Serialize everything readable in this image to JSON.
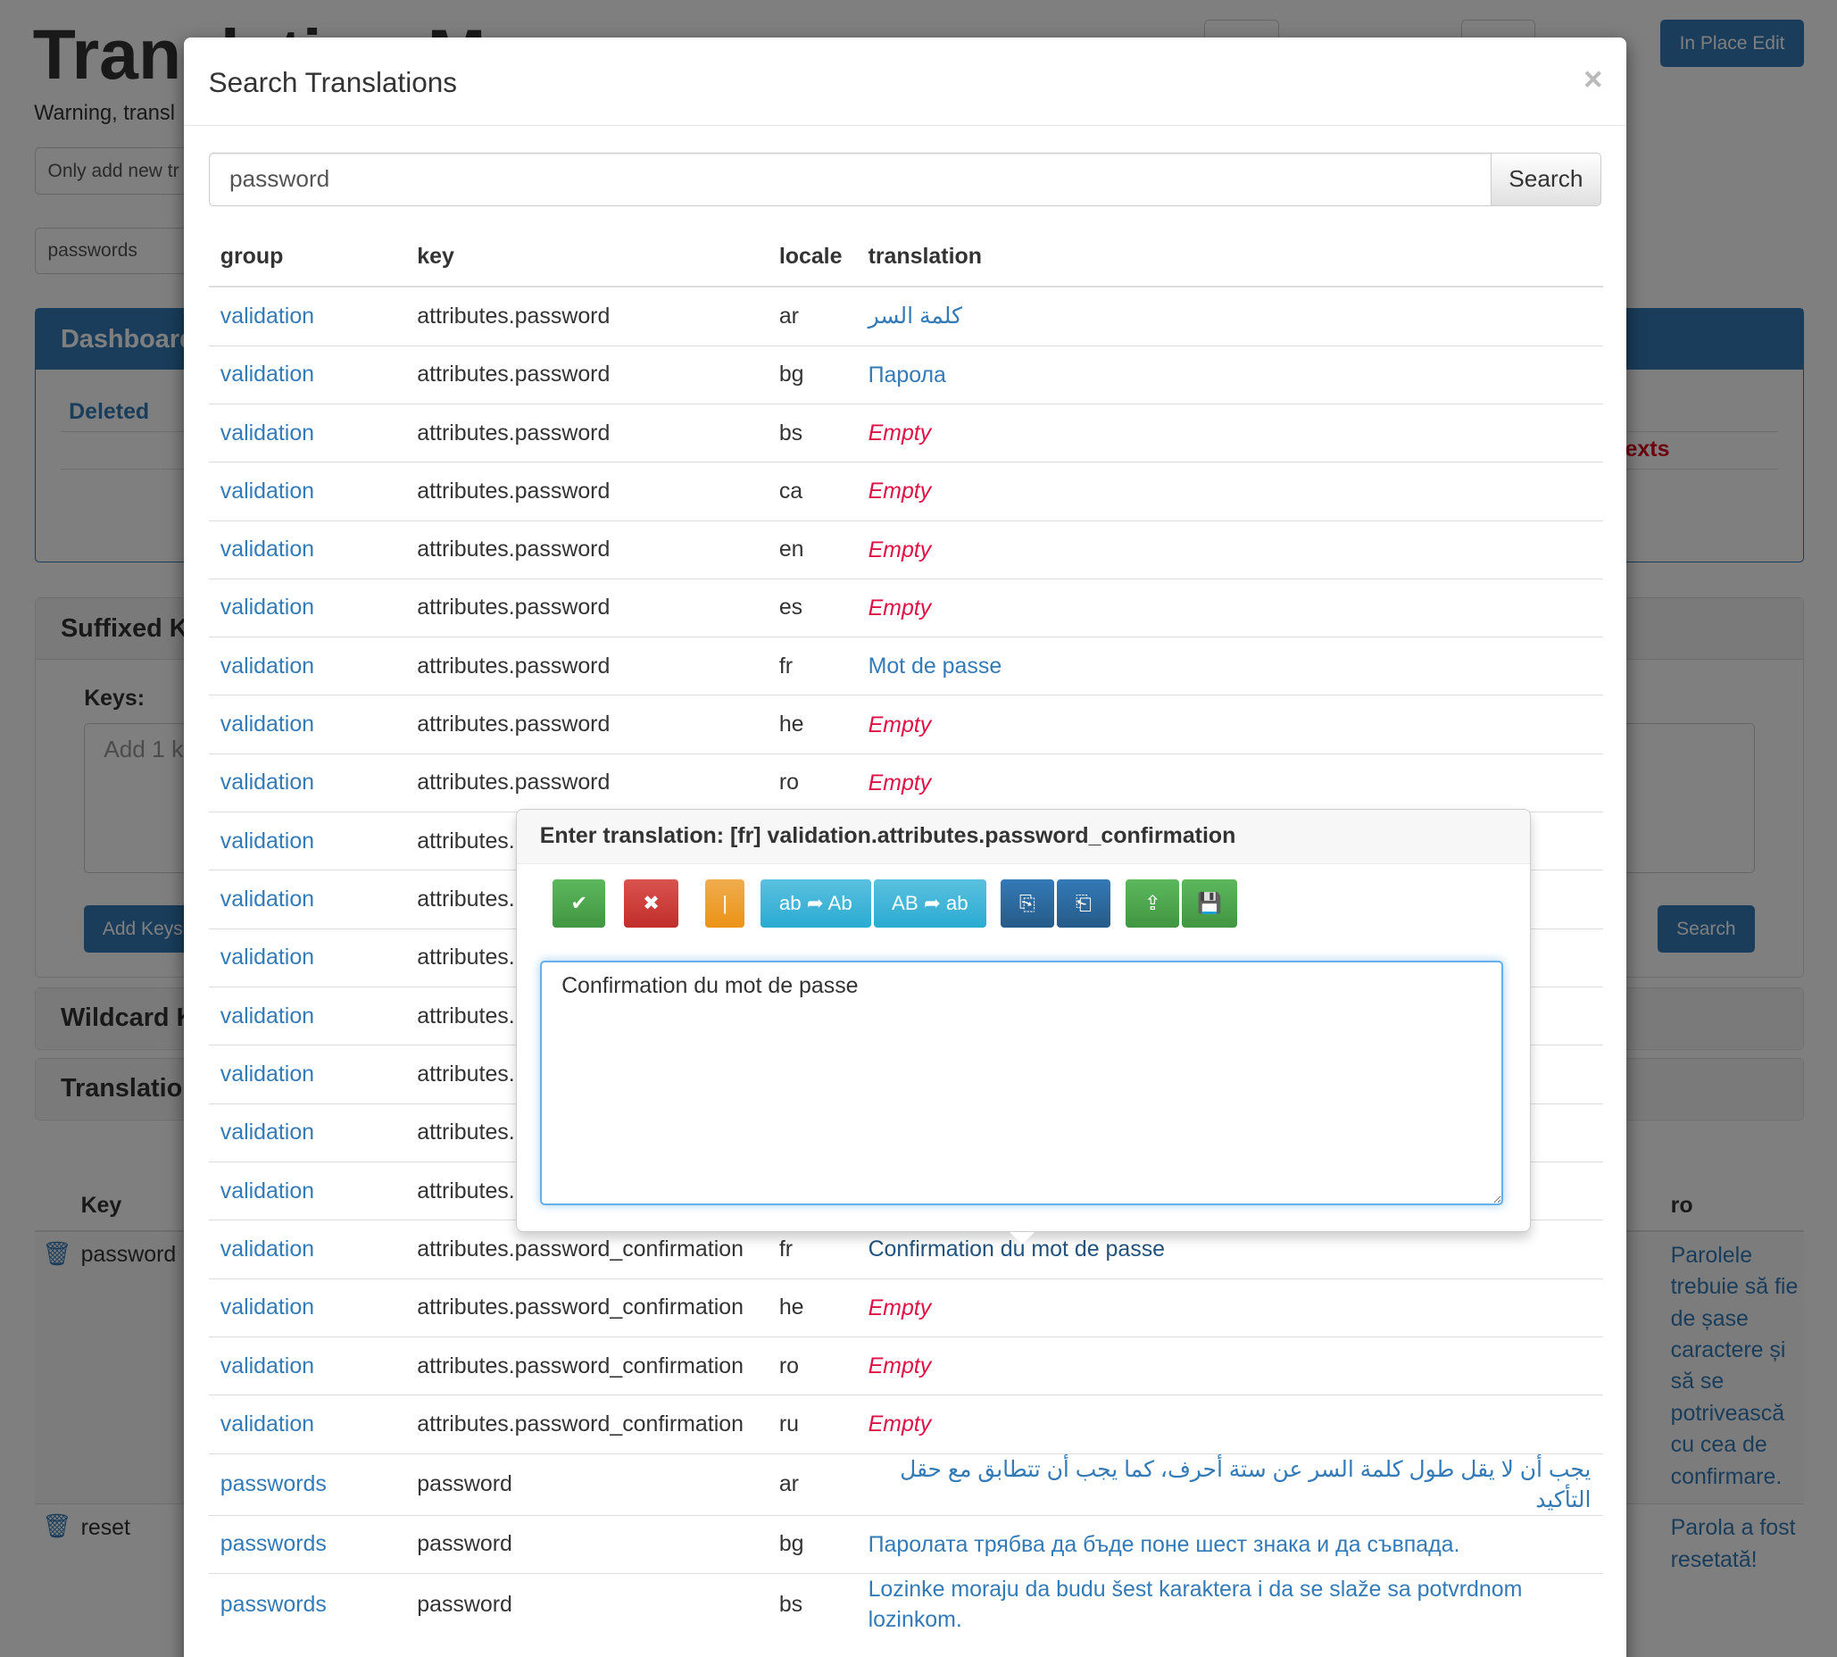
{
  "background": {
    "title": "Translation M",
    "warning": "Warning, transl",
    "only_add_input": "Only add new tr",
    "group_input": "passwords",
    "in_place_edit": "In Place Edit",
    "dashboard": {
      "title": "Dashboard",
      "deleted": "Deleted",
      "texts": "texts"
    },
    "suffixed": {
      "title": "Suffixed K",
      "keys_label": "Keys:",
      "keys_placeholder": "Add 1 k",
      "add_keys": "Add Keys",
      "search": "Search"
    },
    "wildcard": {
      "title": "Wildcard K"
    },
    "translations": {
      "title": "Translation"
    },
    "table": {
      "key_header": "Key",
      "ro_header": "ro",
      "rows": [
        {
          "key": "password",
          "ro": "Parolele trebuie să fie de șase caractere și să se potrivească cu cea de confirmare."
        },
        {
          "key": "reset",
          "ro": "Parola a fost resetată!"
        }
      ]
    }
  },
  "modal": {
    "title": "Search Translations",
    "close": "×",
    "search_value": "password",
    "search_button": "Search",
    "columns": [
      "group",
      "key",
      "locale",
      "translation"
    ],
    "rows": [
      {
        "group": "validation",
        "key": "attributes.password",
        "locale": "ar",
        "translation": "كلمة السر",
        "empty": false
      },
      {
        "group": "validation",
        "key": "attributes.password",
        "locale": "bg",
        "translation": "Парола",
        "empty": false
      },
      {
        "group": "validation",
        "key": "attributes.password",
        "locale": "bs",
        "translation": "Empty",
        "empty": true
      },
      {
        "group": "validation",
        "key": "attributes.password",
        "locale": "ca",
        "translation": "Empty",
        "empty": true
      },
      {
        "group": "validation",
        "key": "attributes.password",
        "locale": "en",
        "translation": "Empty",
        "empty": true
      },
      {
        "group": "validation",
        "key": "attributes.password",
        "locale": "es",
        "translation": "Empty",
        "empty": true
      },
      {
        "group": "validation",
        "key": "attributes.password",
        "locale": "fr",
        "translation": "Mot de passe",
        "empty": false
      },
      {
        "group": "validation",
        "key": "attributes.password",
        "locale": "he",
        "translation": "Empty",
        "empty": true
      },
      {
        "group": "validation",
        "key": "attributes.password",
        "locale": "ro",
        "translation": "Empty",
        "empty": true
      },
      {
        "group": "validation",
        "key": "attributes.",
        "locale": "",
        "translation": "",
        "empty": false
      },
      {
        "group": "validation",
        "key": "attributes.",
        "locale": "",
        "translation": "",
        "empty": false
      },
      {
        "group": "validation",
        "key": "attributes.",
        "locale": "",
        "translation": "",
        "empty": false
      },
      {
        "group": "validation",
        "key": "attributes.",
        "locale": "",
        "translation": "",
        "empty": false
      },
      {
        "group": "validation",
        "key": "attributes.",
        "locale": "",
        "translation": "",
        "empty": false
      },
      {
        "group": "validation",
        "key": "attributes.",
        "locale": "",
        "translation": "",
        "empty": false
      },
      {
        "group": "validation",
        "key": "attributes.",
        "locale": "",
        "translation": "",
        "empty": false
      },
      {
        "group": "validation",
        "key": "attributes.password_confirmation",
        "locale": "fr",
        "translation": "Confirmation du mot de passe",
        "empty": false,
        "active": true
      },
      {
        "group": "validation",
        "key": "attributes.password_confirmation",
        "locale": "he",
        "translation": "Empty",
        "empty": true
      },
      {
        "group": "validation",
        "key": "attributes.password_confirmation",
        "locale": "ro",
        "translation": "Empty",
        "empty": true
      },
      {
        "group": "validation",
        "key": "attributes.password_confirmation",
        "locale": "ru",
        "translation": "Empty",
        "empty": true
      },
      {
        "group": "passwords",
        "key": "password",
        "locale": "ar",
        "translation": "يجب أن لا يقل طول كلمة السر عن ستة أحرف، كما يجب أن تتطابق مع حقل التأكيد",
        "empty": false
      },
      {
        "group": "passwords",
        "key": "password",
        "locale": "bg",
        "translation": "Паролата трябва да бъде поне шест знака и да съвпада.",
        "empty": false
      },
      {
        "group": "passwords",
        "key": "password",
        "locale": "bs",
        "translation": "Lozinke moraju da budu šest karaktera i da se slaže sa potvrdnom lozinkom.",
        "empty": false
      }
    ]
  },
  "editor_popup": {
    "title": "Enter translation: [fr] validation.attributes.password_confirmation",
    "value": "Confirmation du mot de passe",
    "buttons": [
      {
        "name": "save-button",
        "label": "✔",
        "style": "g",
        "icon": "check-icon"
      },
      {
        "name": "cancel-button",
        "label": "✖",
        "style": "r",
        "icon": "close-icon"
      },
      {
        "name": "cursor-button",
        "label": "|",
        "style": "o",
        "icon": "text-cursor-icon"
      },
      {
        "name": "capitalize-button",
        "label": "ab ➦ Ab",
        "style": "i",
        "icon": "capitalize-icon"
      },
      {
        "name": "lowercase-button",
        "label": "AB ➦ ab",
        "style": "i",
        "icon": "lowercase-icon"
      },
      {
        "name": "paste-in-button",
        "label": "⎘",
        "style": "p",
        "icon": "clipboard-in-icon"
      },
      {
        "name": "copy-out-button",
        "label": "⎗",
        "style": "p",
        "icon": "clipboard-out-icon"
      },
      {
        "name": "upload-button",
        "label": "⇪",
        "style": "g",
        "icon": "upload-icon"
      },
      {
        "name": "save-all-button",
        "label": "💾",
        "style": "g",
        "icon": "floppy-upload-icon"
      }
    ]
  },
  "colors": {
    "link": "#337ab7",
    "empty": "#dd1144",
    "primary": "#337ab7",
    "success": "#5cb85c",
    "danger": "#d9534f",
    "warning": "#f0ad4e",
    "info": "#5bc0de"
  }
}
